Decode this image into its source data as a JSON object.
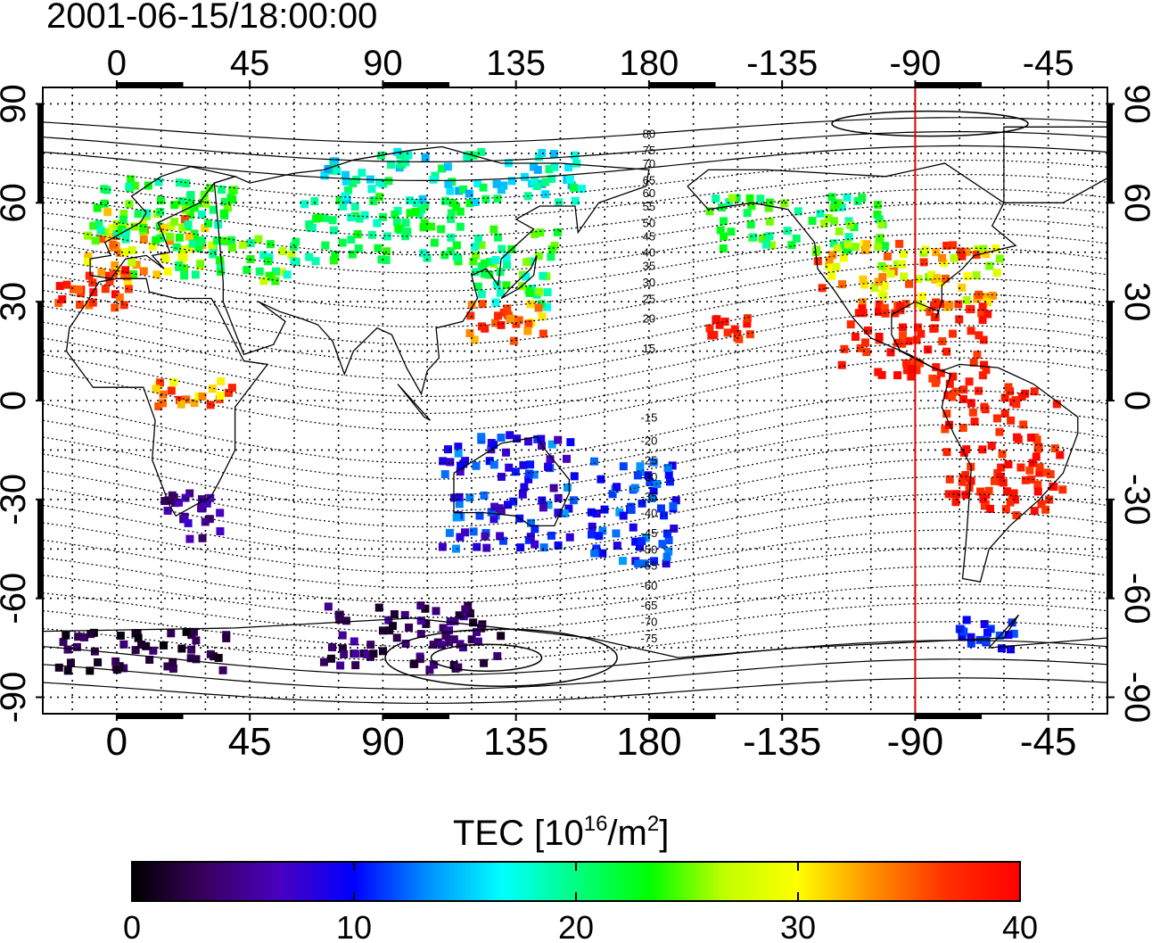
{
  "title": "2001-06-15/18:00:00",
  "map": {
    "lon_ticks": [
      "0",
      "45",
      "90",
      "135",
      "180",
      "-135",
      "-90",
      "-45"
    ],
    "lon_tick_values": [
      0,
      45,
      90,
      135,
      180,
      225,
      270,
      315
    ],
    "lat_ticks": [
      "90",
      "60",
      "30",
      "0",
      "-30",
      "-60",
      "-90"
    ],
    "lat_tick_values": [
      90,
      60,
      30,
      0,
      -30,
      -60,
      -90
    ],
    "lon_range": [
      -25,
      335
    ],
    "lat_range": [
      -95,
      95
    ],
    "grid": "dotted",
    "meridian_marker": {
      "longitude": -90,
      "color": "#e00000"
    },
    "contour_labels_north": [
      "80",
      "75",
      "70",
      "65",
      "60",
      "55",
      "50",
      "45",
      "40",
      "35",
      "30",
      "25",
      "20",
      "15"
    ],
    "contour_labels_north_lat": [
      81,
      76,
      72,
      67,
      63,
      59,
      54,
      50,
      45,
      41,
      36,
      31,
      25,
      16
    ],
    "contour_labels_south": [
      "-15",
      "-20",
      "-25",
      "-30",
      "-35",
      "-40",
      "-45",
      "-50",
      "-55",
      "-60",
      "-65",
      "-70",
      "-75"
    ],
    "contour_labels_south_lat": [
      -5,
      -12,
      -18,
      -23,
      -29,
      -34,
      -40,
      -45,
      -50,
      -56,
      -62,
      -67,
      -72
    ]
  },
  "colorbar": {
    "label_main": "TEC  [10",
    "label_exp": "16",
    "label_mid": "/m",
    "label_exp2": "2",
    "label_end": "]",
    "tick_labels": [
      "0",
      "10",
      "20",
      "30",
      "40"
    ],
    "tick_values": [
      0,
      10,
      20,
      30,
      40
    ],
    "range": [
      0,
      40
    ],
    "colormap": [
      "#000000",
      "#3a0060",
      "#4a00c0",
      "#0000ff",
      "#0090ff",
      "#00ffff",
      "#00ff80",
      "#00ff00",
      "#c0ff00",
      "#ffff00",
      "#ff9000",
      "#ff3000",
      "#ff0000"
    ]
  },
  "chart_data": {
    "type": "scatter",
    "title": "2001-06-15/18:00:00",
    "xlabel": "",
    "ylabel": "",
    "colorbar_label": "TEC [10^16/m^2]",
    "xlim": [
      -25,
      335
    ],
    "ylim": [
      -95,
      95
    ],
    "regions": [
      {
        "lon": [
          -10,
          30
        ],
        "lat": [
          36,
          60
        ],
        "tec": [
          22,
          36
        ]
      },
      {
        "lon": [
          -10,
          40
        ],
        "lat": [
          48,
          68
        ],
        "tec": [
          18,
          26
        ]
      },
      {
        "lon": [
          -20,
          5
        ],
        "lat": [
          28,
          40
        ],
        "tec": [
          34,
          40
        ]
      },
      {
        "lon": [
          20,
          60
        ],
        "lat": [
          36,
          50
        ],
        "tec": [
          18,
          28
        ]
      },
      {
        "lon": [
          60,
          120
        ],
        "lat": [
          42,
          62
        ],
        "tec": [
          18,
          24
        ]
      },
      {
        "lon": [
          120,
          150
        ],
        "lat": [
          28,
          52
        ],
        "tec": [
          17,
          26
        ]
      },
      {
        "lon": [
          118,
          145
        ],
        "lat": [
          18,
          30
        ],
        "tec": [
          30,
          40
        ]
      },
      {
        "lon": [
          70,
          160
        ],
        "lat": [
          60,
          76
        ],
        "tec": [
          14,
          22
        ]
      },
      {
        "lon": [
          10,
          40
        ],
        "lat": [
          -2,
          6
        ],
        "tec": [
          28,
          38
        ]
      },
      {
        "lon": [
          15,
          35
        ],
        "lat": [
          -42,
          -28
        ],
        "tec": [
          3,
          8
        ]
      },
      {
        "lon": [
          110,
          155
        ],
        "lat": [
          -45,
          -10
        ],
        "tec": [
          6,
          14
        ]
      },
      {
        "lon": [
          160,
          190
        ],
        "lat": [
          -50,
          -18
        ],
        "tec": [
          8,
          14
        ]
      },
      {
        "lon": [
          70,
          130
        ],
        "lat": [
          -82,
          -62
        ],
        "tec": [
          1,
          6
        ]
      },
      {
        "lon": [
          -20,
          40
        ],
        "lat": [
          -82,
          -70
        ],
        "tec": [
          0,
          4
        ]
      },
      {
        "lon": [
          200,
          260
        ],
        "lat": [
          45,
          62
        ],
        "tec": [
          18,
          26
        ]
      },
      {
        "lon": [
          235,
          300
        ],
        "lat": [
          28,
          48
        ],
        "tec": [
          25,
          38
        ]
      },
      {
        "lon": [
          245,
          295
        ],
        "lat": [
          5,
          30
        ],
        "tec": [
          36,
          40
        ]
      },
      {
        "lon": [
          280,
          320
        ],
        "lat": [
          -35,
          5
        ],
        "tec": [
          36,
          40
        ]
      },
      {
        "lon": [
          200,
          215
        ],
        "lat": [
          17,
          25
        ],
        "tec": [
          36,
          40
        ]
      },
      {
        "lon": [
          285,
          305
        ],
        "lat": [
          -76,
          -66
        ],
        "tec": [
          8,
          12
        ]
      }
    ]
  }
}
